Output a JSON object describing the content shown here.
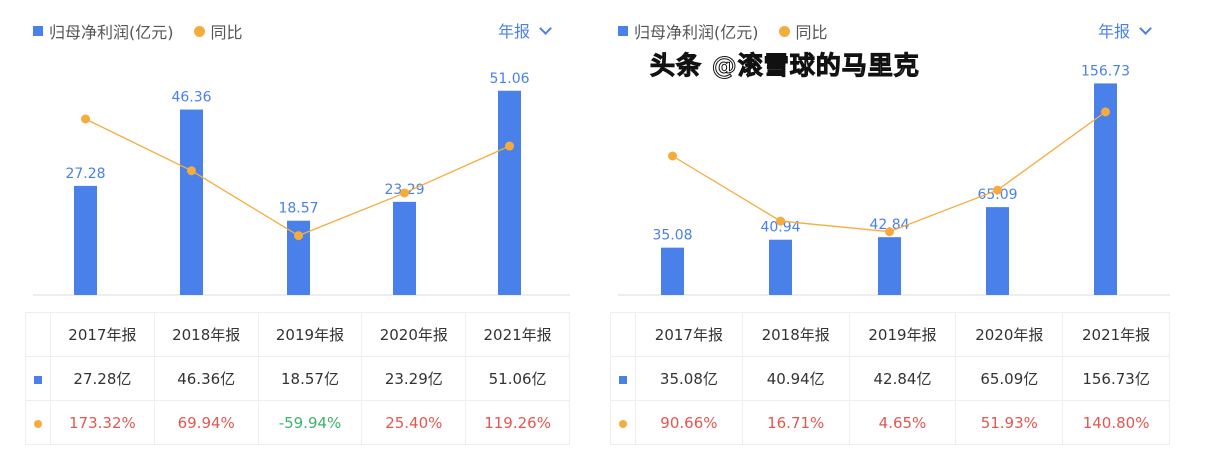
{
  "legend": {
    "bar": "归母净利润(亿元)",
    "line": "同比"
  },
  "period": "年报",
  "watermark": "头条 @滚雪球的马里克",
  "colors": {
    "bar": "#4a80ea",
    "line": "#f5ac3c",
    "positive": "#e5564f",
    "negative": "#3bb46a"
  },
  "chart_data": [
    {
      "type": "bar+line",
      "categories": [
        "2017年报",
        "2018年报",
        "2019年报",
        "2020年报",
        "2021年报"
      ],
      "series": [
        {
          "name": "归母净利润(亿元)",
          "values": [
            27.28,
            46.36,
            18.57,
            23.29,
            51.06
          ],
          "labels": [
            "27.28亿",
            "46.36亿",
            "18.57亿",
            "23.29亿",
            "51.06亿"
          ]
        },
        {
          "name": "同比",
          "values": [
            173.32,
            69.94,
            -59.94,
            25.4,
            119.26
          ],
          "labels": [
            "173.32%",
            "69.94%",
            "-59.94%",
            "25.40%",
            "119.26%"
          ]
        }
      ]
    },
    {
      "type": "bar+line",
      "categories": [
        "2017年报",
        "2018年报",
        "2019年报",
        "2020年报",
        "2021年报"
      ],
      "series": [
        {
          "name": "归母净利润(亿元)",
          "values": [
            35.08,
            40.94,
            42.84,
            65.09,
            156.73
          ],
          "labels": [
            "35.08亿",
            "40.94亿",
            "42.84亿",
            "65.09亿",
            "156.73亿"
          ]
        },
        {
          "name": "同比",
          "values": [
            90.66,
            16.71,
            4.65,
            51.93,
            140.8
          ],
          "labels": [
            "90.66%",
            "16.71%",
            "4.65%",
            "51.93%",
            "140.80%"
          ]
        }
      ]
    }
  ]
}
